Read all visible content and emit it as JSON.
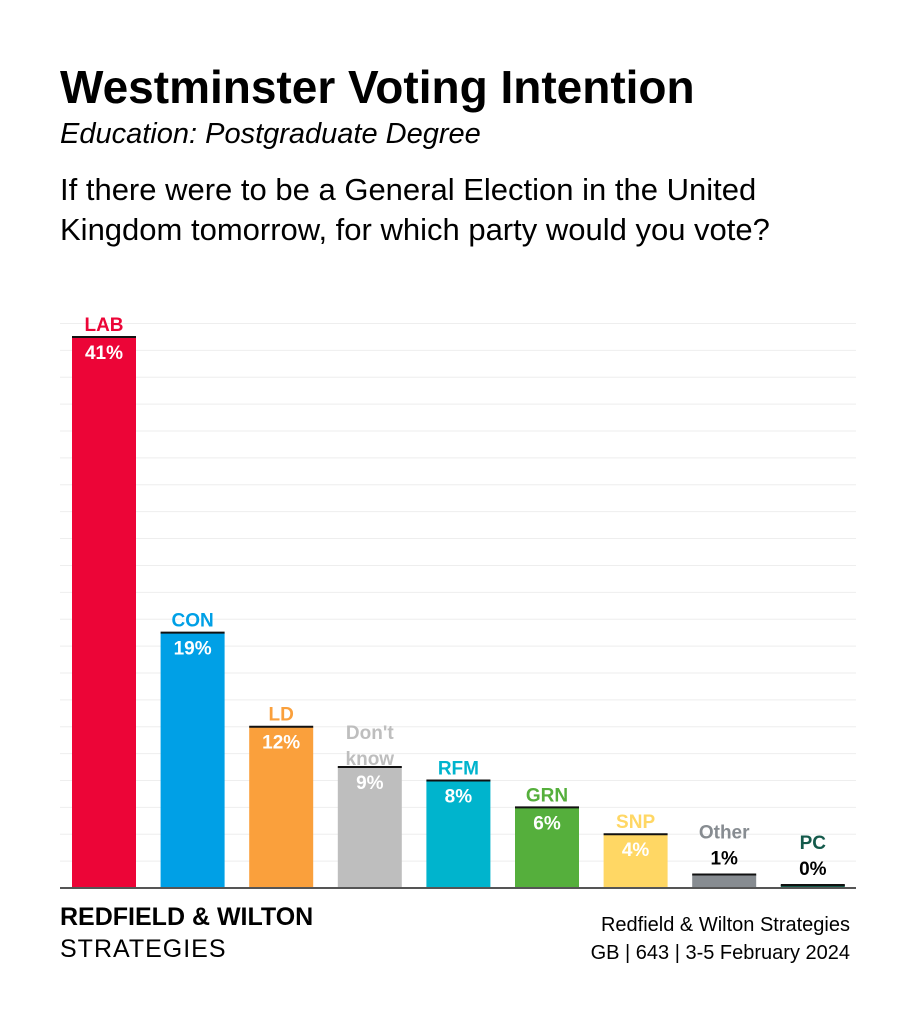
{
  "title": "Westminster Voting Intention",
  "subtitle": "Education: Postgraduate Degree",
  "question": "If there were to be a General Election in the United Kingdom tomorrow, for which party would you vote?",
  "footer": {
    "brand_line1": "REDFIELD & WILTON",
    "brand_line2": "STRATEGIES",
    "source_line1": "Redfield & Wilton Strategies",
    "source_line2": "GB | 643 | 3-5 February 2024"
  },
  "chart_data": {
    "type": "bar",
    "title": "Westminster Voting Intention",
    "ylim": [
      0,
      42
    ],
    "grid": true,
    "categories": [
      "LAB",
      "CON",
      "LD",
      "Don't know",
      "RFM",
      "GRN",
      "SNP",
      "Other",
      "PC"
    ],
    "values": [
      41,
      19,
      12,
      9,
      8,
      6,
      4,
      1,
      0
    ],
    "value_labels": [
      "41%",
      "19%",
      "12%",
      "9%",
      "8%",
      "6%",
      "4%",
      "1%",
      "0%"
    ],
    "colors": [
      "#EC0537",
      "#00A0E6",
      "#FAA03C",
      "#BEBEBE",
      "#00B4CD",
      "#55AF3C",
      "#FFD764",
      "#878C91",
      "#145A4B"
    ]
  }
}
